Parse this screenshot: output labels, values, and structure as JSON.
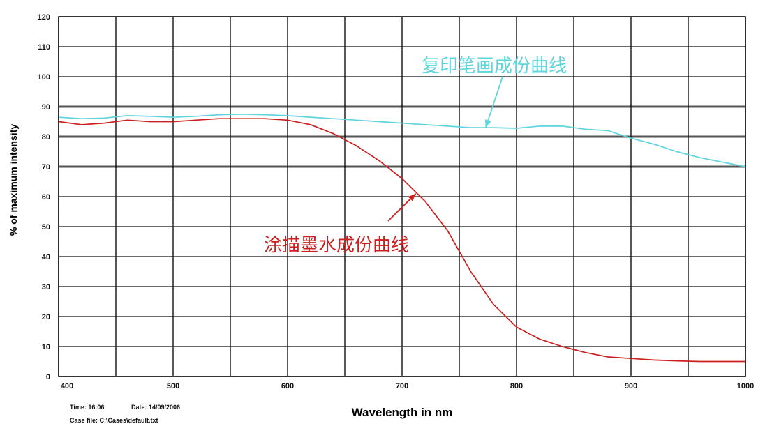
{
  "chart_data": {
    "type": "line",
    "xlabel": "Wavelength in nm",
    "ylabel": "% of maximum intensity",
    "xlim": [
      400,
      1000
    ],
    "ylim": [
      0,
      120
    ],
    "x_ticks": [
      "400",
      "500",
      "600",
      "700",
      "800",
      "900",
      "1000"
    ],
    "y_ticks": [
      "0",
      "10",
      "20",
      "30",
      "40",
      "50",
      "60",
      "70",
      "80",
      "90",
      "100",
      "110",
      "120"
    ],
    "grid": true,
    "series": [
      {
        "name": "复印笔画成份曲线",
        "color": "#5fd4dc",
        "x": [
          400,
          420,
          440,
          460,
          480,
          500,
          520,
          540,
          560,
          580,
          600,
          620,
          640,
          660,
          680,
          700,
          720,
          740,
          760,
          780,
          800,
          820,
          840,
          860,
          880,
          900,
          920,
          940,
          960,
          980,
          1000
        ],
        "y": [
          86.5,
          86.0,
          86.2,
          87.0,
          86.8,
          86.5,
          86.8,
          87.3,
          87.5,
          87.3,
          87.0,
          86.5,
          86.0,
          85.5,
          85.0,
          84.5,
          84.0,
          83.5,
          83.0,
          83.0,
          82.8,
          83.5,
          83.5,
          82.5,
          82.0,
          79.5,
          77.5,
          75.0,
          73.0,
          71.5,
          70.0
        ]
      },
      {
        "name": "涂描墨水成份曲线",
        "color": "#cc1f1f",
        "x": [
          400,
          420,
          440,
          460,
          480,
          500,
          520,
          540,
          560,
          580,
          600,
          620,
          640,
          660,
          680,
          700,
          720,
          740,
          760,
          780,
          800,
          820,
          840,
          860,
          880,
          900,
          920,
          940,
          960,
          980,
          1000
        ],
        "y": [
          85.0,
          84.0,
          84.5,
          85.5,
          85.0,
          85.0,
          85.5,
          86.0,
          86.0,
          86.0,
          85.5,
          84.0,
          81.0,
          77.0,
          72.0,
          66.0,
          58.5,
          48.5,
          35.0,
          24.0,
          16.5,
          12.5,
          10.0,
          8.0,
          6.5,
          6.0,
          5.5,
          5.2,
          5.0,
          5.0,
          5.0
        ]
      }
    ],
    "annotations": [
      {
        "text": "复印笔画成份曲线",
        "color": "#5fd4dc",
        "arrow_to": [
          773,
          83
        ]
      },
      {
        "text": "涂描墨水成份曲线",
        "color": "#cc1f1f",
        "arrow_to": [
          712,
          61
        ]
      }
    ]
  },
  "meta": {
    "time": "Time: 16:06",
    "date": "Date: 14/09/2006",
    "case_file": "Case file: C:\\Cases\\default.txt"
  }
}
